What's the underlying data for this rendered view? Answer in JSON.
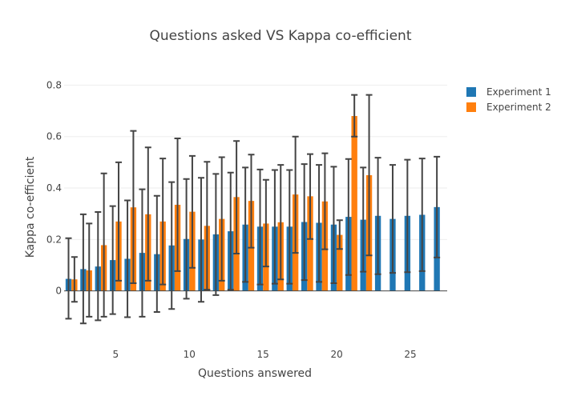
{
  "chart_data": {
    "type": "bar",
    "title": "Questions asked VS Kappa co-efficient",
    "xlabel": "Questions answered",
    "ylabel": "Kappa co-efficient",
    "xlim": [
      1.5,
      27.5
    ],
    "ylim": [
      -0.2,
      0.82
    ],
    "xticks": [
      5,
      10,
      15,
      20,
      25
    ],
    "yticks": [
      0,
      0.2,
      0.4,
      0.6,
      0.8
    ],
    "ytick_labels": [
      "0",
      "0.2",
      "0.4",
      "0.6",
      "0.8"
    ],
    "grid": true,
    "legend_position": "top-right",
    "series": [
      {
        "name": "Experiment 1",
        "color": "#1f77b4",
        "x": [
          2,
          3,
          4,
          5,
          6,
          7,
          8,
          9,
          10,
          11,
          12,
          13,
          14,
          15,
          16,
          17,
          18,
          19,
          20,
          21,
          22,
          23,
          24,
          25,
          26,
          27
        ],
        "values": [
          0.047,
          0.085,
          0.095,
          0.12,
          0.125,
          0.148,
          0.143,
          0.177,
          0.202,
          0.2,
          0.22,
          0.232,
          0.258,
          0.25,
          0.25,
          0.25,
          0.268,
          0.265,
          0.258,
          0.288,
          0.277,
          0.292,
          0.28,
          0.292,
          0.296,
          0.326
        ],
        "err_low": [
          -0.108,
          -0.126,
          -0.114,
          -0.09,
          -0.102,
          -0.1,
          -0.082,
          -0.07,
          -0.03,
          -0.042,
          -0.016,
          0.005,
          0.035,
          0.025,
          0.028,
          0.028,
          0.042,
          0.035,
          0.03,
          0.062,
          0.075,
          0.065,
          0.07,
          0.073,
          0.077,
          0.13
        ],
        "err_high": [
          0.205,
          0.298,
          0.307,
          0.33,
          0.352,
          0.395,
          0.37,
          0.423,
          0.435,
          0.44,
          0.455,
          0.46,
          0.48,
          0.472,
          0.47,
          0.47,
          0.493,
          0.49,
          0.483,
          0.513,
          0.48,
          0.518,
          0.49,
          0.51,
          0.515,
          0.522
        ]
      },
      {
        "name": "Experiment 2",
        "color": "#ff7f0e",
        "x": [
          2,
          3,
          4,
          5,
          6,
          7,
          8,
          9,
          10,
          11,
          12,
          13,
          14,
          15,
          16,
          17,
          18,
          19,
          20,
          21,
          22
        ],
        "values": [
          0.045,
          0.08,
          0.178,
          0.27,
          0.325,
          0.298,
          0.27,
          0.335,
          0.308,
          0.253,
          0.28,
          0.365,
          0.35,
          0.262,
          0.267,
          0.375,
          0.368,
          0.348,
          0.218,
          0.68,
          0.45
        ],
        "err_low": [
          -0.042,
          -0.1,
          -0.1,
          0.04,
          0.03,
          0.04,
          0.025,
          0.077,
          0.09,
          0.005,
          0.04,
          0.145,
          0.168,
          0.095,
          0.045,
          0.148,
          0.202,
          0.162,
          0.163,
          0.6,
          0.138
        ],
        "err_high": [
          0.132,
          0.262,
          0.457,
          0.5,
          0.622,
          0.558,
          0.515,
          0.593,
          0.525,
          0.502,
          0.52,
          0.583,
          0.53,
          0.432,
          0.49,
          0.6,
          0.532,
          0.535,
          0.275,
          0.762,
          0.762
        ]
      }
    ]
  }
}
